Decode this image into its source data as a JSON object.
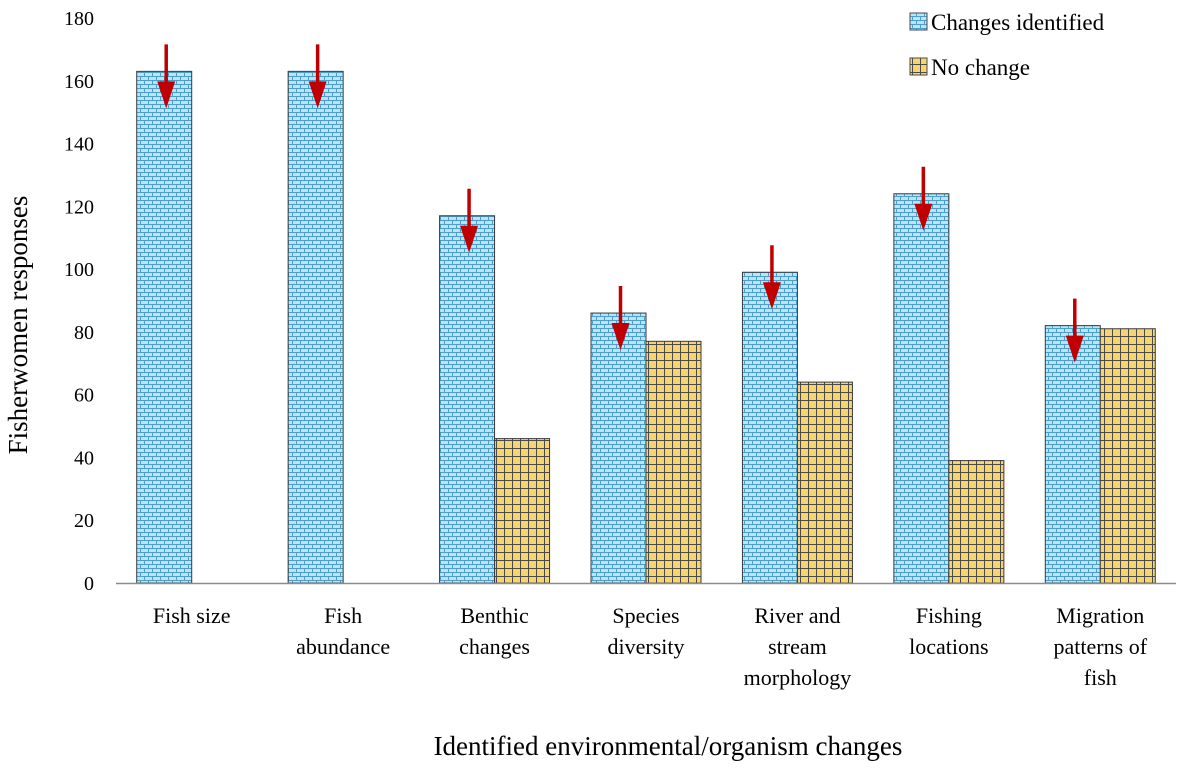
{
  "chart_data": {
    "type": "bar",
    "title": "",
    "xlabel": "Identified environmental/organism  changes",
    "ylabel": "Fisherwomen   responses",
    "ylim": [
      0,
      180
    ],
    "yticks": [
      0,
      20,
      40,
      60,
      80,
      100,
      120,
      140,
      160,
      180
    ],
    "categories": [
      [
        "Fish size"
      ],
      [
        "Fish",
        "abundance"
      ],
      [
        "Benthic",
        "changes"
      ],
      [
        "Species",
        "diversity"
      ],
      [
        "River and",
        "stream",
        "morphology"
      ],
      [
        "Fishing",
        "locations"
      ],
      [
        "Migration",
        "patterns of",
        "fish"
      ]
    ],
    "series": [
      {
        "name": "Changes identified",
        "values": [
          163,
          163,
          117,
          86,
          99,
          124,
          82
        ],
        "color": "#bfe3f0",
        "pattern": "brick"
      },
      {
        "name": "No change",
        "values": [
          0,
          0,
          46,
          77,
          64,
          39,
          81
        ],
        "color": "#f7d56e",
        "pattern": "grid"
      }
    ],
    "annotations": {
      "type": "down-arrow",
      "series": "Changes identified",
      "color": "#c00000",
      "categories": [
        0,
        1,
        2,
        3,
        4,
        5,
        6
      ]
    },
    "legend": {
      "position": "top-right"
    },
    "grid": false
  }
}
